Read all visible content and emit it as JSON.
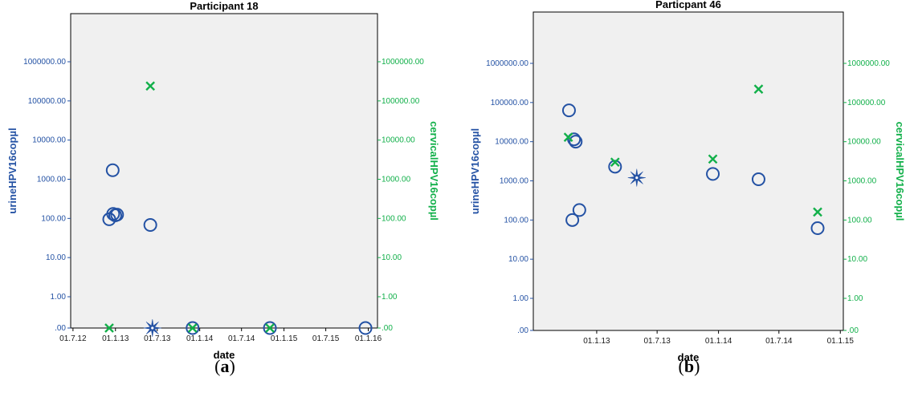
{
  "colors": {
    "urine": "#2452a4",
    "cervical": "#12b04a",
    "plot_background": "#f0f0f0",
    "frame": "#000000"
  },
  "chart_data": [
    {
      "type": "scatter",
      "title": "Participant 18",
      "xlabel": "date",
      "ylabel_left": "urineHPV16copµl",
      "ylabel_right": "cervicalHPV16copµl",
      "caption": {
        "open": "(",
        "letter": "a",
        "close": ")"
      },
      "y_scale": "log",
      "x_ticks": [
        "01.7.12",
        "01.1.13",
        "01.7.13",
        "01.1.14",
        "01.7.14",
        "01.1.15",
        "01.7.15",
        "01.1.16"
      ],
      "x_tick_dates": [
        "2012-07-01",
        "2013-01-01",
        "2013-07-01",
        "2014-01-01",
        "2014-07-01",
        "2015-01-01",
        "2015-07-01",
        "2016-01-01"
      ],
      "xlim": [
        "2012-06-21",
        "2016-02-10"
      ],
      "y_ticks_left": [
        ".00",
        "1.00",
        "10.00",
        "100.00",
        "1000.00",
        "10000.00",
        "100000.00",
        "1000000.00"
      ],
      "y_ticks_right": [
        ".00",
        "1.00",
        "10.00",
        "100.00",
        "1000.00",
        "10000.00",
        "100000.00",
        "1000000.00"
      ],
      "series": [
        {
          "name": "urineHPV16copµl",
          "marker": "circle",
          "axis": "left",
          "points": [
            {
              "x": "2012-12-05",
              "y": 95
            },
            {
              "x": "2012-12-22",
              "y": 130
            },
            {
              "x": "2012-12-31",
              "y": 120
            },
            {
              "x": "2013-01-08",
              "y": 125
            },
            {
              "x": "2012-12-20",
              "y": 1700
            },
            {
              "x": "2013-06-01",
              "y": 68
            },
            {
              "x": "2013-12-01",
              "y": 0
            },
            {
              "x": "2014-11-01",
              "y": 0
            },
            {
              "x": "2015-12-20",
              "y": 0
            }
          ]
        },
        {
          "name": "cervicalHPV16copµl",
          "marker": "cross",
          "axis": "right",
          "points": [
            {
              "x": "2012-12-05",
              "y": 0
            },
            {
              "x": "2013-06-01",
              "y": 240000
            },
            {
              "x": "2013-12-01",
              "y": 0
            },
            {
              "x": "2014-11-01",
              "y": 0
            }
          ]
        },
        {
          "name": "overlap",
          "marker": "star",
          "axis": "left",
          "points": [
            {
              "x": "2013-06-10",
              "y": 0
            }
          ]
        }
      ]
    },
    {
      "type": "scatter",
      "title": "Particpant 46",
      "xlabel": "date",
      "ylabel_left": "urineHPV16copµl",
      "ylabel_right": "cervicalHPV16copµl",
      "caption": {
        "open": "(",
        "letter": "b",
        "close": ")"
      },
      "y_scale": "log",
      "x_ticks": [
        "01.1.13",
        "01.7.13",
        "01.1.14",
        "01.7.14",
        "01.1.15"
      ],
      "x_tick_dates": [
        "2013-01-01",
        "2013-07-01",
        "2014-01-01",
        "2014-07-01",
        "2015-01-01"
      ],
      "xlim": [
        "2012-06-25",
        "2015-01-10"
      ],
      "y_ticks_left": [
        ".00",
        "1.00",
        "10.00",
        "100.00",
        "1000.00",
        "10000.00",
        "100000.00",
        "1000000.00"
      ],
      "y_ticks_right": [
        ".00",
        "1.00",
        "10.00",
        "100.00",
        "1000.00",
        "10000.00",
        "100000.00",
        "1000000.00"
      ],
      "series": [
        {
          "name": "urineHPV16copµl",
          "marker": "circle",
          "axis": "left",
          "points": [
            {
              "x": "2012-10-10",
              "y": 63000
            },
            {
              "x": "2012-10-25",
              "y": 11500
            },
            {
              "x": "2012-10-30",
              "y": 10000
            },
            {
              "x": "2012-10-20",
              "y": 100
            },
            {
              "x": "2012-11-10",
              "y": 180
            },
            {
              "x": "2013-02-25",
              "y": 2300
            },
            {
              "x": "2013-12-15",
              "y": 1500
            },
            {
              "x": "2014-05-01",
              "y": 1100
            },
            {
              "x": "2014-10-25",
              "y": 62
            }
          ]
        },
        {
          "name": "cervicalHPV16copµl",
          "marker": "cross",
          "axis": "right",
          "points": [
            {
              "x": "2012-10-08",
              "y": 13000
            },
            {
              "x": "2013-02-25",
              "y": 3000
            },
            {
              "x": "2013-12-15",
              "y": 3600
            },
            {
              "x": "2014-05-01",
              "y": 220000
            },
            {
              "x": "2014-10-25",
              "y": 160
            }
          ]
        },
        {
          "name": "overlap",
          "marker": "star",
          "axis": "left",
          "points": [
            {
              "x": "2013-05-01",
              "y": 1200
            }
          ]
        }
      ]
    }
  ]
}
